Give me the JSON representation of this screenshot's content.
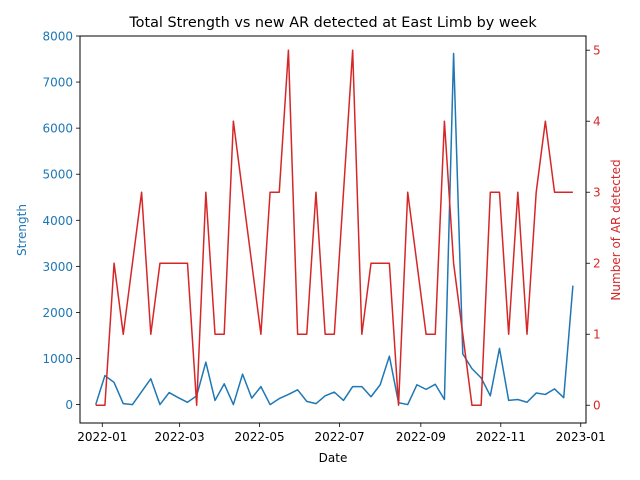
{
  "chart_data": {
    "type": "line",
    "title": "Total Strength vs new AR detected at East Limb by week",
    "xlabel": "Date",
    "ylabel_left": "Strength",
    "ylabel_right": "Number of AR detected",
    "xlim": [
      "2021-12-15",
      "2023-01-05"
    ],
    "ylim_left": [
      -400,
      8000
    ],
    "ylim_right": [
      -0.25,
      5.2
    ],
    "x_ticks": [
      "2022-01-01",
      "2022-03-01",
      "2022-05-01",
      "2022-07-01",
      "2022-09-01",
      "2022-11-01",
      "2023-01-01"
    ],
    "x_tick_labels": [
      "2022-01",
      "2022-03",
      "2022-05",
      "2022-07",
      "2022-09",
      "2022-11",
      "2023-01"
    ],
    "y_ticks_left": [
      0,
      1000,
      2000,
      3000,
      4000,
      5000,
      6000,
      7000,
      8000
    ],
    "y_ticks_right": [
      0,
      1,
      2,
      3,
      4,
      5
    ],
    "grid": false,
    "colors": {
      "left": "#1f77b4",
      "right": "#d62728"
    },
    "series": [
      {
        "axis": "left",
        "color": "#1f77b4",
        "x": [
          "2021-12-27",
          "2022-01-03",
          "2022-01-10",
          "2022-01-17",
          "2022-01-24",
          "2022-01-31",
          "2022-02-07",
          "2022-02-14",
          "2022-02-21",
          "2022-02-28",
          "2022-03-07",
          "2022-03-14",
          "2022-03-21",
          "2022-03-28",
          "2022-04-04",
          "2022-04-11",
          "2022-04-18",
          "2022-04-25",
          "2022-05-02",
          "2022-05-09",
          "2022-05-16",
          "2022-05-23",
          "2022-05-30",
          "2022-06-06",
          "2022-06-13",
          "2022-06-20",
          "2022-06-27",
          "2022-07-04",
          "2022-07-11",
          "2022-07-18",
          "2022-07-25",
          "2022-08-01",
          "2022-08-08",
          "2022-08-15",
          "2022-08-22",
          "2022-08-29",
          "2022-09-05",
          "2022-09-12",
          "2022-09-19",
          "2022-09-26",
          "2022-10-03",
          "2022-10-10",
          "2022-10-17",
          "2022-10-24",
          "2022-10-31",
          "2022-11-07",
          "2022-11-14",
          "2022-11-21",
          "2022-11-28",
          "2022-12-05",
          "2022-12-12",
          "2022-12-19",
          "2022-12-26"
        ],
        "values": [
          0,
          630,
          480,
          20,
          0,
          280,
          560,
          0,
          260,
          150,
          50,
          190,
          920,
          90,
          450,
          0,
          660,
          140,
          390,
          0,
          130,
          220,
          320,
          70,
          20,
          190,
          270,
          90,
          390,
          390,
          170,
          430,
          1050,
          40,
          0,
          430,
          330,
          440,
          110,
          7620,
          1100,
          780,
          580,
          190,
          1220,
          90,
          110,
          50,
          250,
          220,
          340,
          150,
          2580
        ]
      },
      {
        "axis": "right",
        "color": "#d62728",
        "x": [
          "2021-12-27",
          "2022-01-03",
          "2022-01-10",
          "2022-01-17",
          "2022-01-24",
          "2022-01-31",
          "2022-02-07",
          "2022-02-14",
          "2022-02-21",
          "2022-02-28",
          "2022-03-07",
          "2022-03-14",
          "2022-03-21",
          "2022-03-28",
          "2022-04-04",
          "2022-04-11",
          "2022-04-18",
          "2022-04-25",
          "2022-05-02",
          "2022-05-09",
          "2022-05-16",
          "2022-05-23",
          "2022-05-30",
          "2022-06-06",
          "2022-06-13",
          "2022-06-20",
          "2022-06-27",
          "2022-07-04",
          "2022-07-11",
          "2022-07-18",
          "2022-07-25",
          "2022-08-01",
          "2022-08-08",
          "2022-08-15",
          "2022-08-22",
          "2022-08-29",
          "2022-09-05",
          "2022-09-12",
          "2022-09-19",
          "2022-09-26",
          "2022-10-03",
          "2022-10-10",
          "2022-10-17",
          "2022-10-24",
          "2022-10-31",
          "2022-11-07",
          "2022-11-14",
          "2022-11-21",
          "2022-11-28",
          "2022-12-05",
          "2022-12-12",
          "2022-12-19",
          "2022-12-26"
        ],
        "values": [
          0,
          0,
          2,
          1,
          2,
          3,
          1,
          2,
          2,
          2,
          2,
          0,
          3,
          1,
          1,
          4,
          3,
          2,
          1,
          3,
          3,
          5,
          1,
          1,
          3,
          1,
          1,
          3,
          5,
          1,
          2,
          2,
          2,
          0,
          3,
          2,
          1,
          1,
          4,
          2,
          1,
          0,
          0,
          3,
          3,
          1,
          3,
          1,
          3,
          4,
          3,
          3,
          3
        ]
      }
    ]
  }
}
